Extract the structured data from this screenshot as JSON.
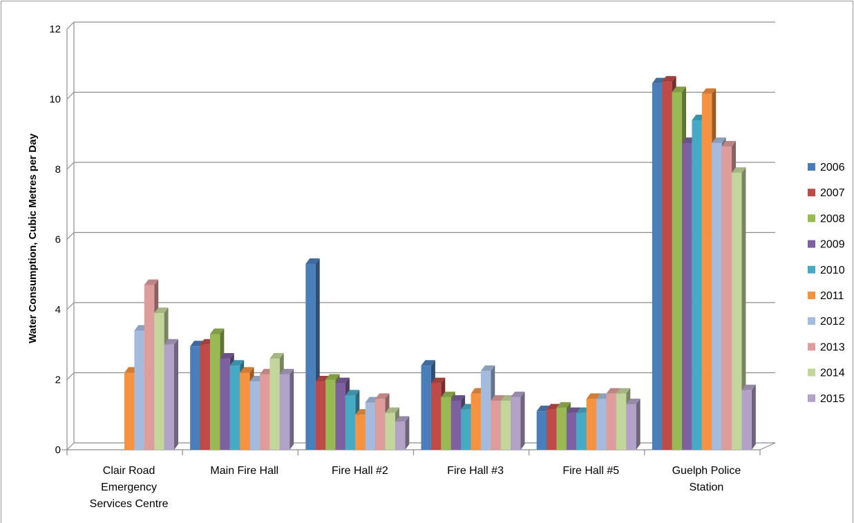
{
  "chart_data": {
    "type": "bar",
    "title": "",
    "xlabel": "",
    "ylabel": "Water Consumption, Cubic Metres per Day",
    "ylim": [
      0,
      12
    ],
    "yticks": [
      0,
      2,
      4,
      6,
      8,
      10,
      12
    ],
    "grid": true,
    "legend_position": "right",
    "categories": [
      "Clair Road Emergency Services Centre",
      "Main Fire Hall",
      "Fire Hall #2",
      "Fire Hall #3",
      "Fire Hall #5",
      "Guelph Police Station"
    ],
    "category_lines": [
      [
        "Clair Road",
        "Emergency",
        "Services Centre"
      ],
      [
        "Main Fire Hall"
      ],
      [
        "Fire Hall #2"
      ],
      [
        "Fire Hall #3"
      ],
      [
        "Fire Hall #5"
      ],
      [
        "Guelph Police",
        "Station"
      ]
    ],
    "series": [
      {
        "name": "2006",
        "color": "#4a7ebb",
        "values": [
          null,
          2.95,
          5.3,
          2.4,
          1.1,
          10.45
        ]
      },
      {
        "name": "2007",
        "color": "#be4b48",
        "values": [
          null,
          3.0,
          1.95,
          1.9,
          1.15,
          10.5
        ]
      },
      {
        "name": "2008",
        "color": "#98b954",
        "values": [
          null,
          3.3,
          2.0,
          1.5,
          1.2,
          10.2
        ]
      },
      {
        "name": "2009",
        "color": "#7d60a0",
        "values": [
          null,
          2.6,
          1.9,
          1.4,
          1.05,
          8.75
        ]
      },
      {
        "name": "2010",
        "color": "#46aac5",
        "values": [
          null,
          2.4,
          1.55,
          1.15,
          1.05,
          9.4
        ]
      },
      {
        "name": "2011",
        "color": "#f69240",
        "values": [
          2.2,
          2.2,
          1.0,
          1.6,
          1.45,
          10.15
        ]
      },
      {
        "name": "2012",
        "color": "#a5bbde",
        "values": [
          3.4,
          1.95,
          1.35,
          2.25,
          1.45,
          8.75
        ]
      },
      {
        "name": "2013",
        "color": "#de9c9b",
        "values": [
          4.7,
          2.15,
          1.45,
          1.4,
          1.6,
          8.65
        ]
      },
      {
        "name": "2014",
        "color": "#c2d69b",
        "values": [
          3.9,
          2.6,
          1.05,
          1.4,
          1.6,
          7.9
        ]
      },
      {
        "name": "2015",
        "color": "#b2a2c7",
        "values": [
          3.0,
          2.15,
          0.8,
          1.5,
          1.3,
          1.7
        ]
      }
    ]
  }
}
